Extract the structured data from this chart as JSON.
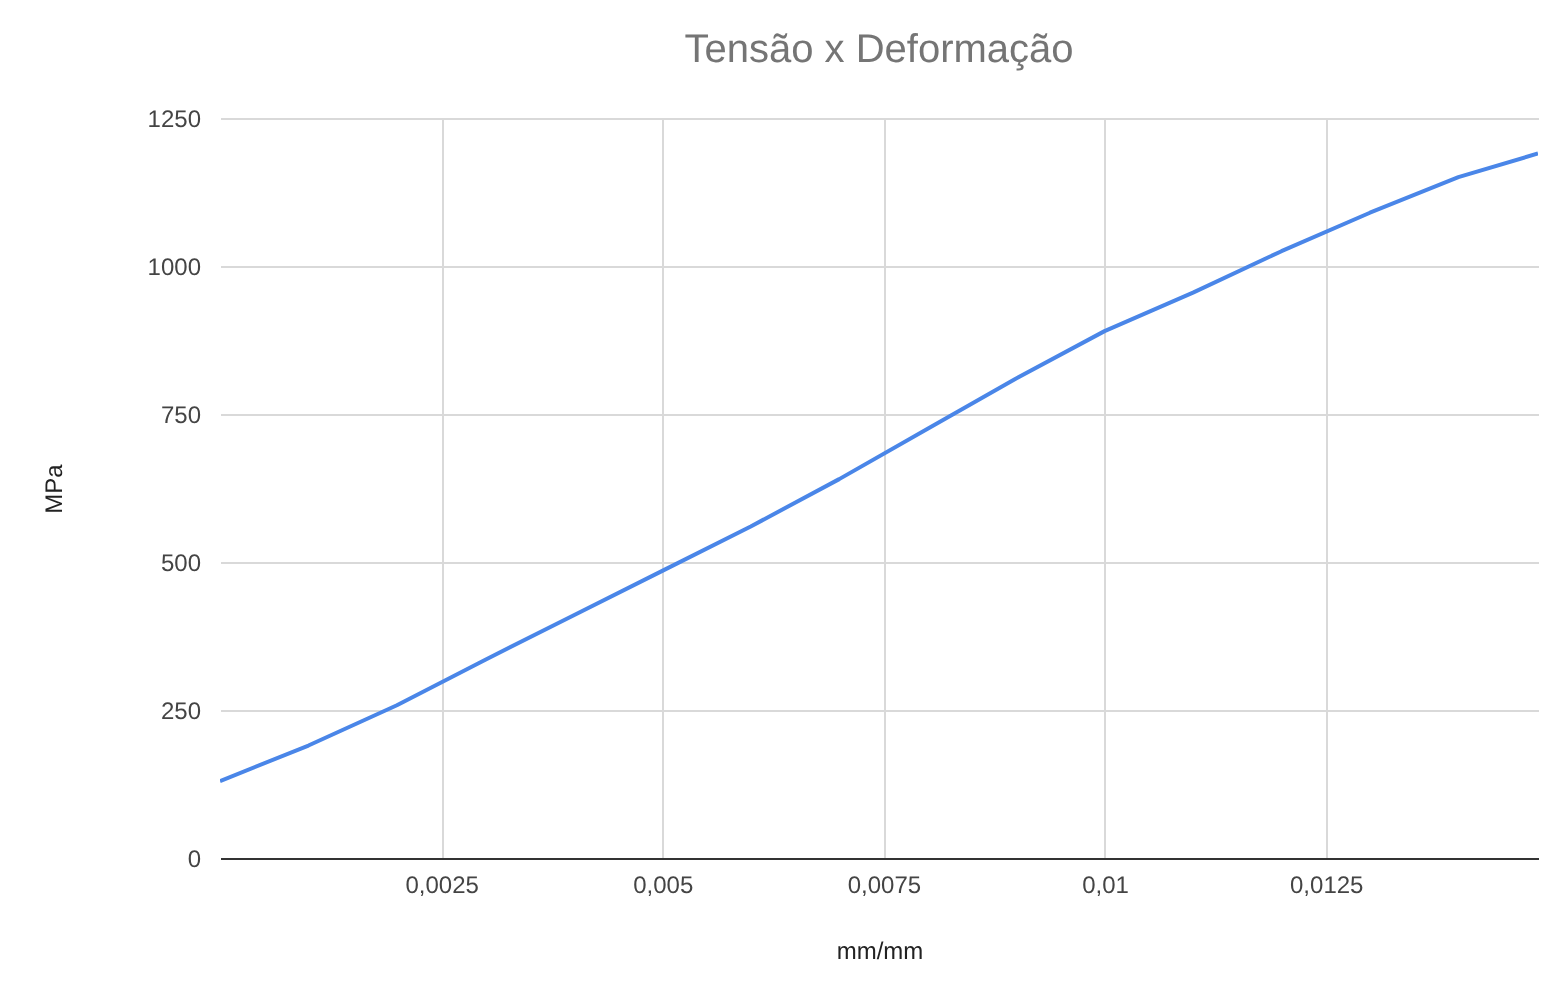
{
  "chart_data": {
    "type": "line",
    "title": "Tensão x Deformação",
    "xlabel": "mm/mm",
    "ylabel": "MPa",
    "x": [
      0,
      0.001,
      0.002,
      0.003,
      0.004,
      0.005,
      0.006,
      0.007,
      0.008,
      0.009,
      0.01,
      0.011,
      0.012,
      0.013,
      0.014,
      0.0149
    ],
    "series": [
      {
        "color": "#4a86e8",
        "values": [
          130,
          190,
          258,
          335,
          410,
          485,
          560,
          640,
          725,
          810,
          890,
          955,
          1025,
          1090,
          1150,
          1190
        ]
      }
    ],
    "xlim": [
      0,
      0.0149
    ],
    "xticks": [
      {
        "value": 0.0025,
        "label": "0,0025"
      },
      {
        "value": 0.005,
        "label": "0,005"
      },
      {
        "value": 0.0075,
        "label": "0,0075"
      },
      {
        "value": 0.01,
        "label": "0,01"
      },
      {
        "value": 0.0125,
        "label": "0,0125"
      }
    ],
    "ylim": [
      0,
      1250
    ],
    "yticks": [
      0,
      250,
      500,
      750,
      1000,
      1250
    ],
    "grid": true,
    "legend": false,
    "marker": "none",
    "line_style": "solid"
  }
}
